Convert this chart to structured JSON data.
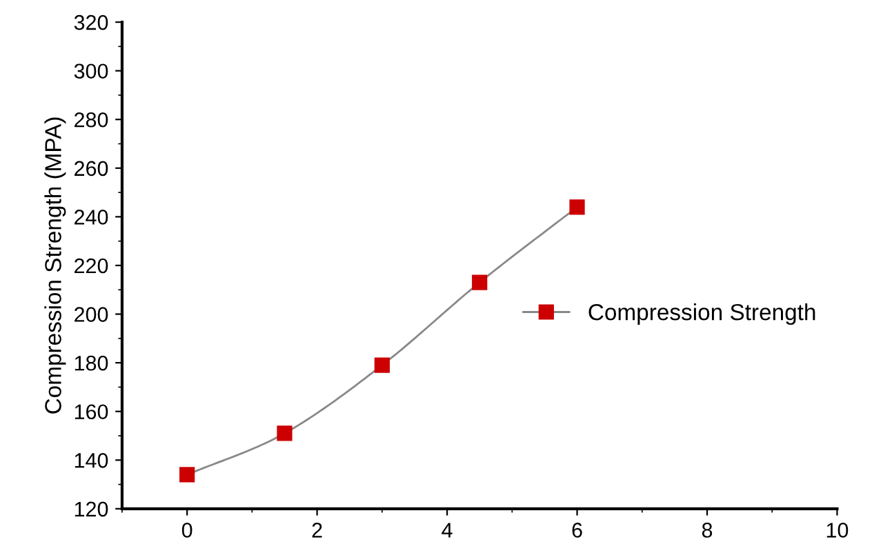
{
  "chart_data": {
    "type": "line",
    "ylabel": "Compression Strength (MPA)",
    "x": [
      0,
      1.5,
      3,
      4.5,
      6
    ],
    "series": [
      {
        "name": "Compression Strength",
        "color": "#cc0000",
        "values": [
          134,
          151,
          179,
          213,
          244
        ]
      }
    ],
    "xlim": [
      -1,
      10
    ],
    "xticks": [
      0,
      2,
      4,
      6,
      8,
      10
    ],
    "ylim": [
      120,
      320
    ],
    "yticks": [
      120,
      140,
      160,
      180,
      200,
      220,
      240,
      260,
      280,
      300,
      320
    ],
    "marker": "square",
    "line_style": "solid",
    "grid": false,
    "legend": "right"
  }
}
